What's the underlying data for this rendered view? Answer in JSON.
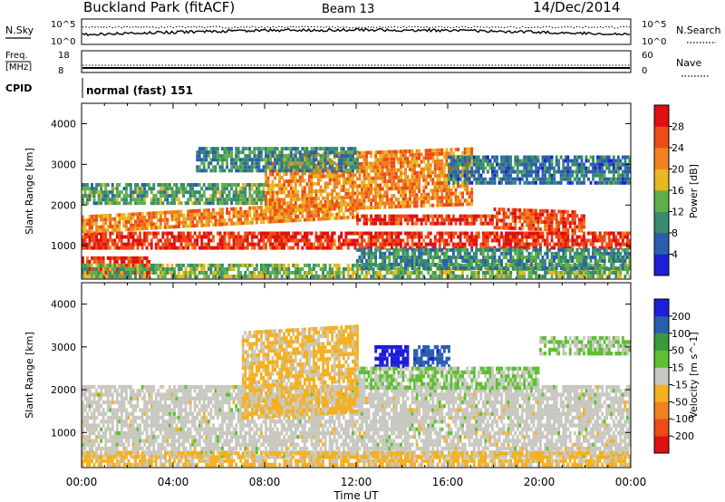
{
  "header": {
    "site": "Buckland Park (fitACF)",
    "beam": "Beam 13",
    "date": "14/Dec/2014"
  },
  "panels": {
    "nsky_label": "N.Sky",
    "nsearch_label": "N.Search",
    "nsky_ticks": [
      "10^5",
      "10^0"
    ],
    "nsearch_ticks": [
      "10^5",
      "10^0"
    ],
    "freq_label_top": "Freq.",
    "freq_label_unit": "[MHz]",
    "freq_ticks": [
      "18",
      "8"
    ],
    "nave_label": "Nave",
    "nave_ticks": [
      "60",
      "0"
    ],
    "cpid_label": "CPID",
    "cpid_value": "normal (fast) 151"
  },
  "chart_data": [
    {
      "type": "heatmap",
      "name": "power",
      "ylabel": "Slant Range [km]",
      "yticks": [
        1000,
        2000,
        3000,
        4000
      ],
      "ylim": [
        180,
        4500
      ],
      "xlim": [
        0,
        24
      ],
      "colorbar_label": "Power [dB]",
      "colorbar_ticks": [
        4,
        8,
        12,
        16,
        20,
        24,
        28
      ],
      "colorbar_range": [
        0,
        32
      ],
      "colors": [
        "#1e1ed8",
        "#2a5fb0",
        "#3a8a6e",
        "#5fb04a",
        "#e8b820",
        "#f08020",
        "#ee4a18",
        "#e01010"
      ],
      "features": [
        {
          "t0": 0.0,
          "t1": 24.0,
          "r0": 900,
          "r1": 1300,
          "level": 28,
          "drift": 0.0
        },
        {
          "t0": 0.0,
          "t1": 12.0,
          "r0": 1300,
          "r1": 1700,
          "level": 22,
          "drift": 30
        },
        {
          "t0": 12.0,
          "t1": 18.0,
          "r0": 1500,
          "r1": 1700,
          "level": 28,
          "drift": 0.0
        },
        {
          "t0": 18.0,
          "t1": 22.0,
          "r0": 1400,
          "r1": 1900,
          "level": 26,
          "drift": -20
        },
        {
          "t0": 0.0,
          "t1": 3.0,
          "r0": 200,
          "r1": 700,
          "level": 28,
          "drift": 0.0
        },
        {
          "t0": 0.0,
          "t1": 8.0,
          "r0": 2000,
          "r1": 2500,
          "level": 12,
          "drift": 0.0
        },
        {
          "t0": 8.0,
          "t1": 17.0,
          "r0": 1800,
          "r1": 3200,
          "level": 22,
          "drift": 20
        },
        {
          "t0": 5.0,
          "t1": 12.0,
          "r0": 2800,
          "r1": 3400,
          "level": 10,
          "drift": 0.0
        },
        {
          "t0": 16.0,
          "t1": 24.0,
          "r0": 2500,
          "r1": 3200,
          "level": 8,
          "drift": 0.0
        },
        {
          "t0": 0.0,
          "t1": 24.0,
          "r0": 200,
          "r1": 500,
          "level": 14,
          "drift": 0.0
        },
        {
          "t0": 12.0,
          "t1": 24.0,
          "r0": 400,
          "r1": 900,
          "level": 10,
          "drift": 0.0
        }
      ]
    },
    {
      "type": "heatmap",
      "name": "velocity",
      "ylabel": "Slant Range [km]",
      "yticks": [
        1000,
        2000,
        3000,
        4000
      ],
      "ylim": [
        180,
        4500
      ],
      "xlim": [
        0,
        24
      ],
      "xlabel": "Time UT",
      "xticks": [
        "00:00",
        "04:00",
        "08:00",
        "12:00",
        "16:00",
        "20:00",
        "00:00"
      ],
      "colorbar_label": "Velocity [m s^-1]",
      "colorbar_ticks": [
        200,
        100,
        50,
        15,
        -15,
        -50,
        -100,
        -200
      ],
      "colorbar_range": [
        -250,
        250
      ],
      "colors": [
        "#e01010",
        "#ee4a18",
        "#f08020",
        "#f5b020",
        "#c8c8c0",
        "#5cc030",
        "#3a9a3a",
        "#2a5fb0",
        "#1e1ed8"
      ],
      "features": [
        {
          "t0": 0.0,
          "t1": 24.0,
          "r0": 400,
          "r1": 2100,
          "level": 0,
          "drift": 0.0
        },
        {
          "t0": 0.0,
          "t1": 24.0,
          "r0": 200,
          "r1": 500,
          "level": -40,
          "drift": 0.0
        },
        {
          "t0": 7.0,
          "t1": 12.0,
          "r0": 1300,
          "r1": 3300,
          "level": -40,
          "drift": 30
        },
        {
          "t0": 12.8,
          "t1": 14.2,
          "r0": 2500,
          "r1": 3000,
          "level": 230,
          "drift": 0.0
        },
        {
          "t0": 14.5,
          "t1": 16.0,
          "r0": 2500,
          "r1": 3000,
          "level": 170,
          "drift": 0.0
        },
        {
          "t0": 12.0,
          "t1": 20.0,
          "r0": 2000,
          "r1": 2500,
          "level": 30,
          "drift": 0.0
        },
        {
          "t0": 20.0,
          "t1": 24.0,
          "r0": 2800,
          "r1": 3200,
          "level": 30,
          "drift": 0.0
        }
      ]
    }
  ]
}
